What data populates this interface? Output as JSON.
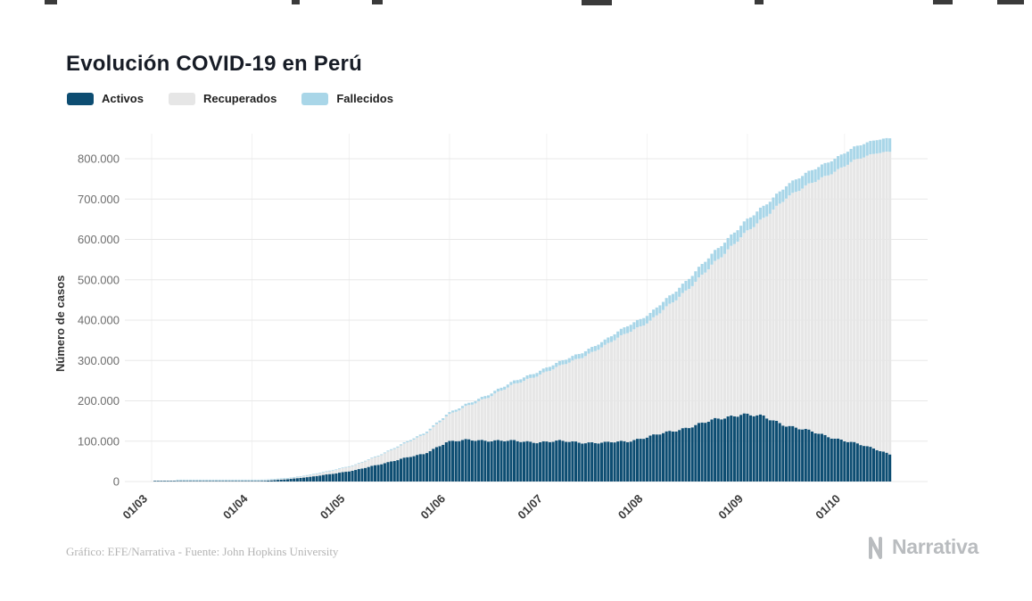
{
  "page": {
    "title": "Evolución COVID-19 en Perú",
    "footer": "Gráfico: EFE/Narrativa - Fuente: John Hopkins University",
    "brand": "Narrativa"
  },
  "legend": [
    {
      "label": "Activos",
      "color": "#0d4d72"
    },
    {
      "label": "Recuperados",
      "color": "#e6e6e6"
    },
    {
      "label": "Fallecidos",
      "color": "#a9d6e8"
    }
  ],
  "chart_data": {
    "type": "bar",
    "stacked": true,
    "title": "Evolución COVID-19 en Perú",
    "xlabel": "",
    "ylabel": "Número de casos",
    "ylim": [
      0,
      860000
    ],
    "grid": true,
    "legend_position": "top-left",
    "ytick_values": [
      0,
      100000,
      200000,
      300000,
      400000,
      500000,
      600000,
      700000,
      800000
    ],
    "ytick_labels": [
      "0",
      "100.000",
      "200.000",
      "300.000",
      "400.000",
      "500.000",
      "600.000",
      "700.000",
      "800.000"
    ],
    "xtick_labels": [
      "01/03",
      "01/04",
      "01/05",
      "01/06",
      "01/07",
      "01/08",
      "01/09",
      "01/10"
    ],
    "xtick_days": [
      0,
      31,
      61,
      92,
      122,
      153,
      184,
      214
    ],
    "x_dates": [
      "01/03",
      "08/03",
      "15/03",
      "22/03",
      "29/03",
      "05/04",
      "12/04",
      "19/04",
      "26/04",
      "03/05",
      "10/05",
      "17/05",
      "24/05",
      "31/05",
      "07/06",
      "14/06",
      "21/06",
      "28/06",
      "05/07",
      "12/07",
      "19/07",
      "26/07",
      "02/08",
      "09/08",
      "16/08",
      "23/08",
      "30/08",
      "06/09",
      "13/09",
      "20/09",
      "27/09",
      "04/10",
      "11/10",
      "15/10"
    ],
    "x_days": [
      0,
      7,
      14,
      21,
      28,
      35,
      42,
      49,
      56,
      63,
      70,
      77,
      84,
      91,
      98,
      105,
      112,
      119,
      126,
      133,
      140,
      147,
      154,
      161,
      168,
      175,
      182,
      189,
      196,
      203,
      210,
      217,
      224,
      228
    ],
    "series": [
      {
        "name": "Activos",
        "color": "#0d4d72",
        "values": [
          0,
          20,
          80,
          350,
          750,
          1800,
          5900,
          11500,
          19600,
          28000,
          42000,
          56000,
          68000,
          98000,
          103000,
          102000,
          100000,
          98000,
          100000,
          97000,
          96000,
          100000,
          112000,
          125000,
          140000,
          155000,
          168000,
          160000,
          140000,
          125000,
          110000,
          95000,
          80000,
          68000
        ]
      },
      {
        "name": "Recuperados",
        "color": "#e6e6e6",
        "values": [
          0,
          0,
          5,
          20,
          80,
          500,
          1300,
          3900,
          7500,
          12500,
          21000,
          33000,
          47000,
          64000,
          85000,
          112000,
          140000,
          165000,
          185000,
          212000,
          240000,
          270000,
          285000,
          320000,
          355000,
          395000,
          440000,
          490000,
          565000,
          610000,
          655000,
          700000,
          735000,
          750000
        ]
      },
      {
        "name": "Fallecidos",
        "color": "#a9d6e8",
        "values": [
          0,
          0,
          1,
          5,
          25,
          80,
          190,
          400,
          700,
          1200,
          1900,
          2700,
          3500,
          4400,
          5500,
          6500,
          7800,
          9100,
          10500,
          11800,
          13200,
          17000,
          19000,
          21000,
          26000,
          27500,
          28600,
          29700,
          30500,
          31300,
          32000,
          32600,
          33200,
          33500
        ]
      }
    ]
  }
}
